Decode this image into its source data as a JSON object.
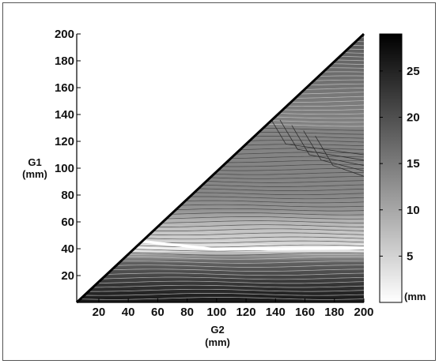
{
  "chart_data": {
    "type": "heatmap",
    "subtype": "filled contour (triangular domain, G1 <= G2)",
    "title": "",
    "xlabel": "G2",
    "xunit": "(mm)",
    "ylabel": "G1",
    "yunit": "(mm)",
    "xlim": [
      5,
      200
    ],
    "ylim": [
      0,
      200
    ],
    "xticks": [
      20,
      40,
      60,
      80,
      100,
      120,
      140,
      160,
      180,
      200
    ],
    "yticks": [
      20,
      40,
      60,
      80,
      100,
      120,
      140,
      160,
      180,
      200
    ],
    "grid": false,
    "colormap": "gray (reversed: white = low, black = high)",
    "colorbar": {
      "range": [
        0,
        29
      ],
      "ticks": [
        5,
        10,
        15,
        20,
        25
      ],
      "unit_label": "(mm"
    },
    "value_profile_along_G1": {
      "G1": [
        2,
        10,
        20,
        30,
        35,
        40,
        45,
        55,
        62,
        68,
        80,
        95,
        110,
        130,
        150,
        170,
        190,
        200
      ],
      "value": [
        26,
        24,
        21,
        18,
        12,
        1,
        5,
        7,
        9,
        12,
        13.5,
        14,
        14,
        14,
        15,
        16.5,
        18,
        19
      ]
    },
    "features": [
      "white minimum ridge near G1 = 38-45 mm",
      "dark region near G1 < 30 mm",
      "medium gray plateau for G1 between 80 and 130 mm",
      "darker band toward top-right corner near G1 = 200 mm"
    ]
  }
}
